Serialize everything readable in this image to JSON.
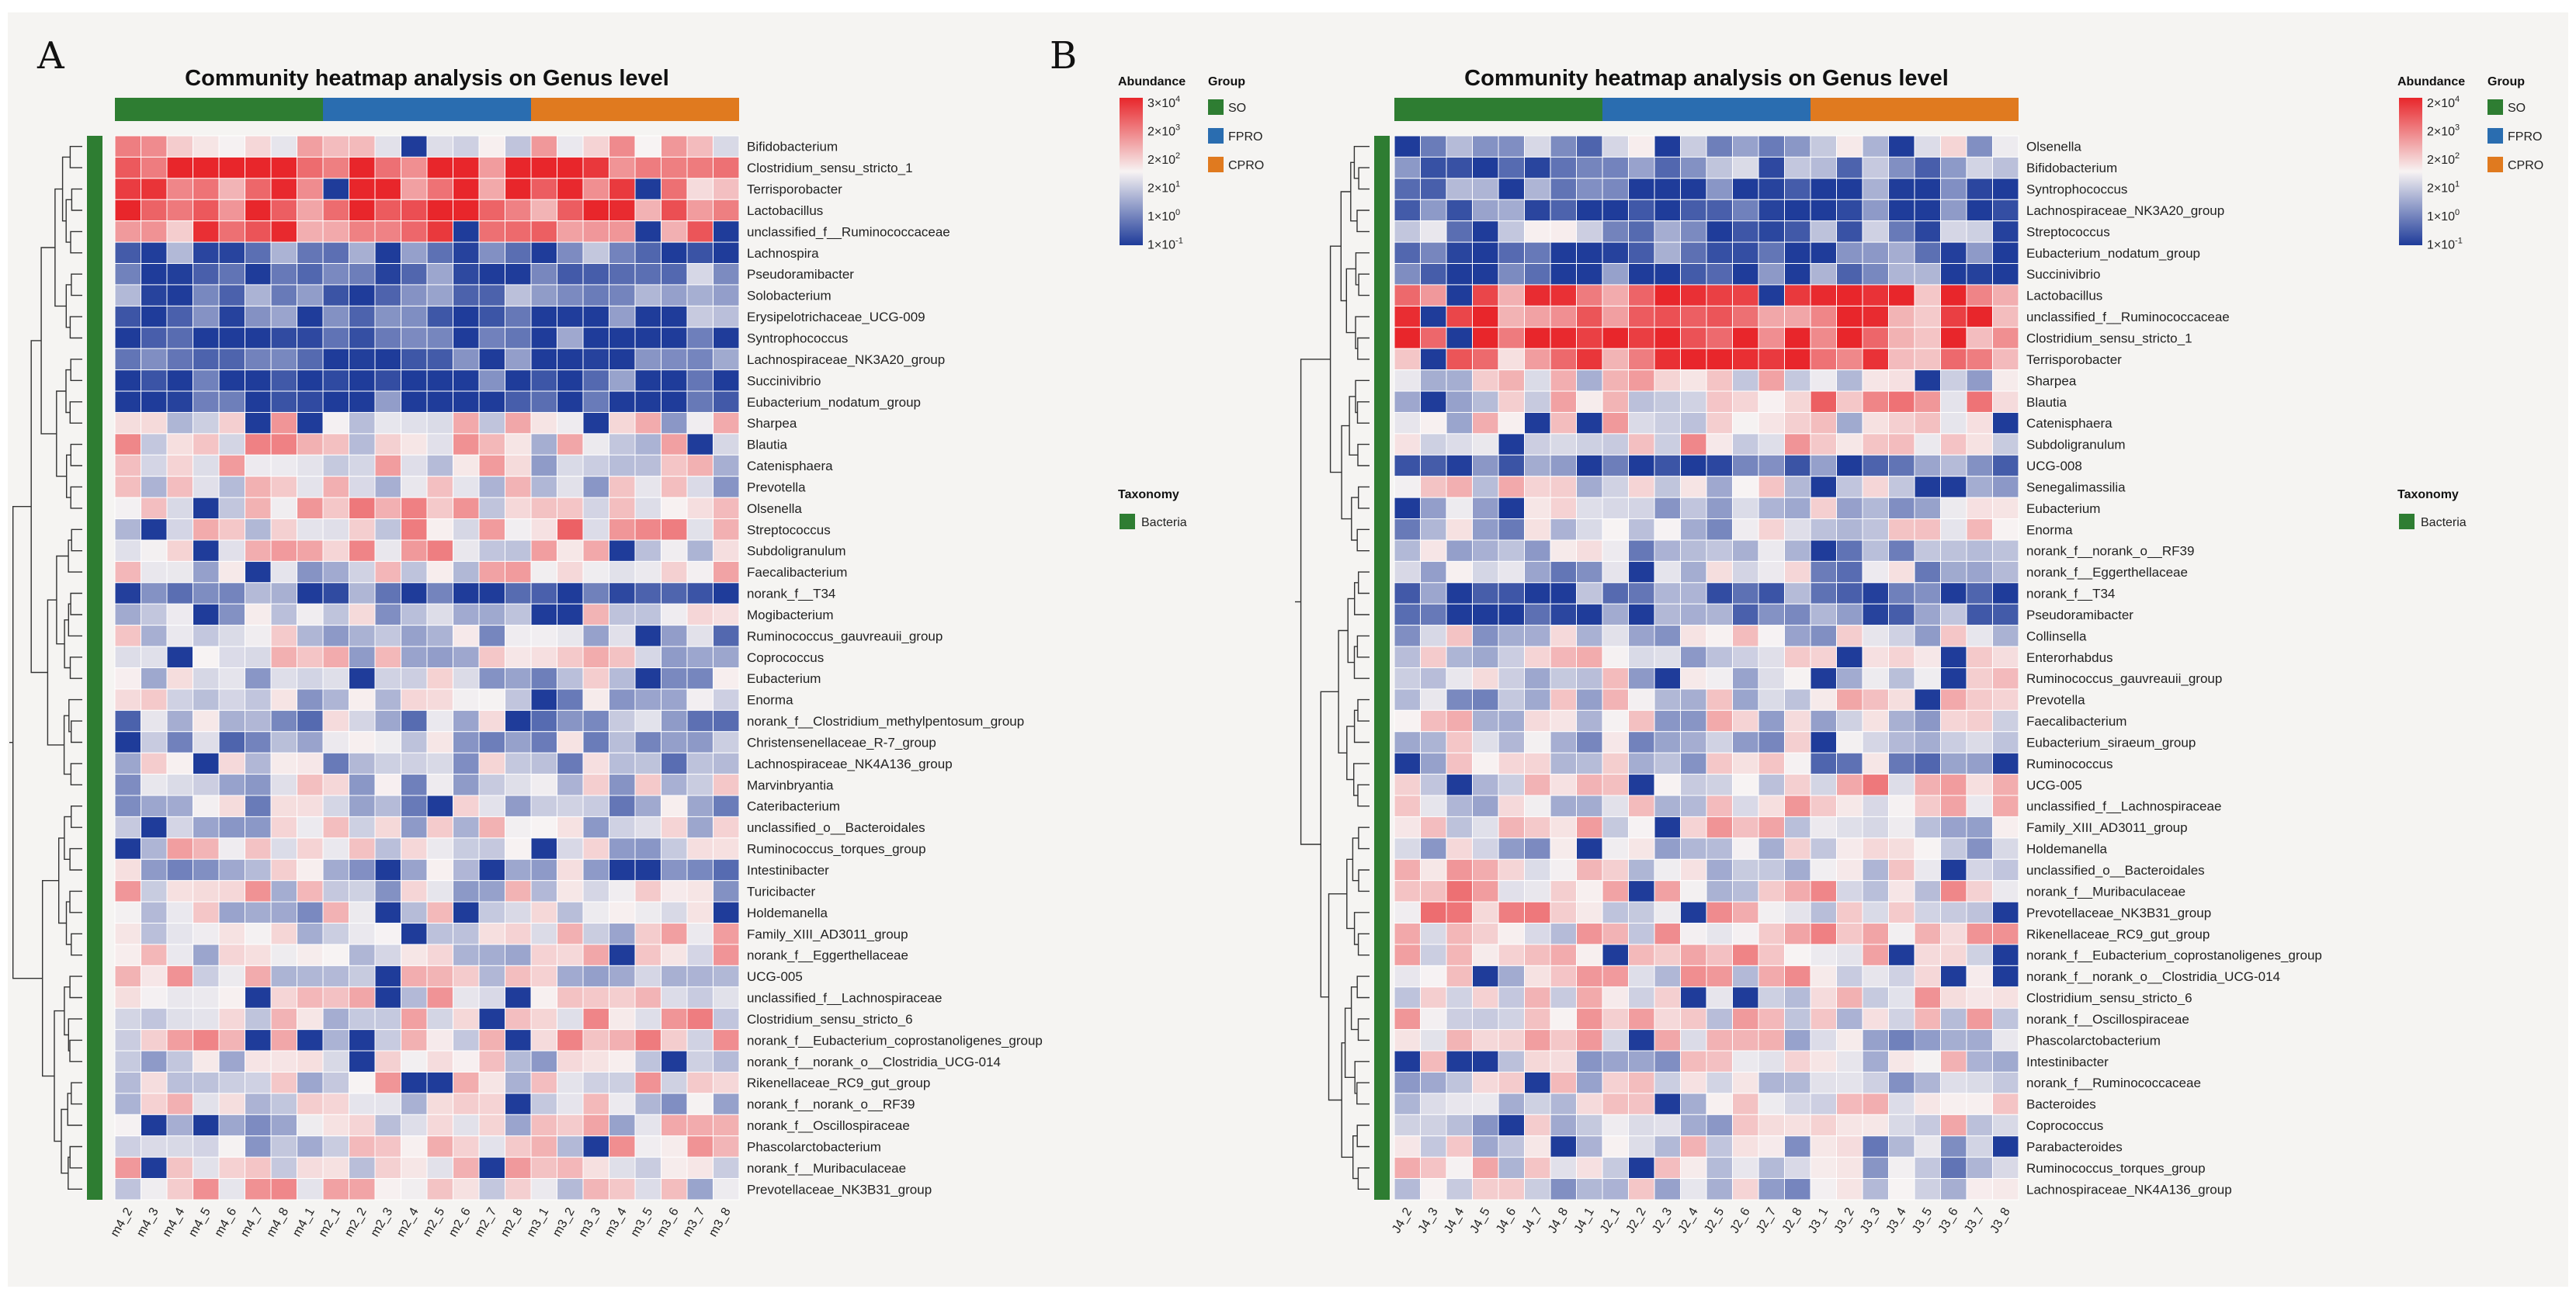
{
  "colors": {
    "SO": "#2e7d32",
    "FPRO": "#2a6db0",
    "CPRO": "#e07a1f",
    "Bacteria": "#2e7d32",
    "low": "#1f3c9a",
    "mid": "#f7f3f3",
    "high": "#e8262b",
    "tree": "#333333"
  },
  "chart_data": [
    {
      "type": "heatmap",
      "panel_label": "A",
      "title": "Community heatmap analysis on Genus level",
      "value_unit": "log10 abundance",
      "groups": [
        {
          "name": "SO",
          "samples": [
            "m4_2",
            "m4_3",
            "m4_4",
            "m4_5",
            "m4_6",
            "m4_7",
            "m4_8",
            "m4_1"
          ]
        },
        {
          "name": "FPRO",
          "samples": [
            "m2_1",
            "m2_2",
            "m2_3",
            "m2_4",
            "m2_5",
            "m2_6",
            "m2_7",
            "m2_8"
          ]
        },
        {
          "name": "CPRO",
          "samples": [
            "m3_1",
            "m3_2",
            "m3_3",
            "m3_4",
            "m3_5",
            "m3_6",
            "m3_7",
            "m3_8"
          ]
        }
      ],
      "columns": [
        "m4_2",
        "m4_3",
        "m4_4",
        "m4_5",
        "m4_6",
        "m4_7",
        "m4_8",
        "m4_1",
        "m2_1",
        "m2_2",
        "m2_3",
        "m2_4",
        "m2_5",
        "m2_6",
        "m2_7",
        "m2_8",
        "m3_1",
        "m3_2",
        "m3_3",
        "m3_4",
        "m3_5",
        "m3_6",
        "m3_7",
        "m3_8"
      ],
      "rows": [
        {
          "name": "Bifidobacterium",
          "level": 1.8
        },
        {
          "name": "Clostridium_sensu_stricto_1",
          "level": 3.6
        },
        {
          "name": "Terrisporobacter",
          "level": 3.3
        },
        {
          "name": "Lactobacillus",
          "level": 3.5
        },
        {
          "name": "unclassified_f__Ruminococcaceae",
          "level": 3.2
        },
        {
          "name": "Lachnospira",
          "level": -0.3
        },
        {
          "name": "Pseudoramibacter",
          "level": -0.2
        },
        {
          "name": "Solobacterium",
          "level": -0.1
        },
        {
          "name": "Erysipelotrichaceae_UCG-009",
          "level": -0.4
        },
        {
          "name": "Syntrophococcus",
          "level": -0.7
        },
        {
          "name": "Lachnospiraceae_NK3A20_group",
          "level": -0.7
        },
        {
          "name": "Succinivibrio",
          "level": -0.6
        },
        {
          "name": "Eubacterium_nodatum_group",
          "level": -0.5
        },
        {
          "name": "Sharpea",
          "level": 1.6
        },
        {
          "name": "Blautia",
          "level": 1.7
        },
        {
          "name": "Catenisphaera",
          "level": 1.5
        },
        {
          "name": "Prevotella",
          "level": 1.5
        },
        {
          "name": "Olsenella",
          "level": 1.9
        },
        {
          "name": "Streptococcus",
          "level": 1.9
        },
        {
          "name": "Subdoligranulum",
          "level": 1.9
        },
        {
          "name": "Faecalibacterium",
          "level": 1.6
        },
        {
          "name": "norank_f__T34",
          "level": -0.3
        },
        {
          "name": "Mogibacterium",
          "level": 1.2
        },
        {
          "name": "Ruminococcus_gauvreauii_group",
          "level": 1.1
        },
        {
          "name": "Coprococcus",
          "level": 1.3
        },
        {
          "name": "Eubacterium",
          "level": 1.0
        },
        {
          "name": "Enorma",
          "level": 0.8
        },
        {
          "name": "norank_f__Clostridium_methylpentosum_group",
          "level": 0.7
        },
        {
          "name": "Christensenellaceae_R-7_group",
          "level": 0.6
        },
        {
          "name": "Lachnospiraceae_NK4A136_group",
          "level": 0.9
        },
        {
          "name": "Marvinbryantia",
          "level": 0.8
        },
        {
          "name": "Cateribacterium",
          "level": 0.9
        },
        {
          "name": "unclassified_o__Bacteroidales",
          "level": 1.2
        },
        {
          "name": "Ruminococcus_torques_group",
          "level": 1.2
        },
        {
          "name": "Intestinibacter",
          "level": 1.1
        },
        {
          "name": "Turicibacter",
          "level": 1.2
        },
        {
          "name": "Holdemanella",
          "level": 1.4
        },
        {
          "name": "Family_XIII_AD3011_group",
          "level": 1.5
        },
        {
          "name": "norank_f__Eggerthellaceae",
          "level": 1.3
        },
        {
          "name": "UCG-005",
          "level": 1.5
        },
        {
          "name": "unclassified_f__Lachnospiraceae",
          "level": 1.6
        },
        {
          "name": "Clostridium_sensu_stricto_6",
          "level": 1.6
        },
        {
          "name": "norank_f__Eubacterium_coprostanoligenes_group",
          "level": 1.7
        },
        {
          "name": "norank_f__norank_o__Clostridia_UCG-014",
          "level": 1.5
        },
        {
          "name": "Rikenellaceae_RC9_gut_group",
          "level": 1.6
        },
        {
          "name": "norank_f__norank_o__RF39",
          "level": 1.4
        },
        {
          "name": "norank_f__Oscillospiraceae",
          "level": 1.5
        },
        {
          "name": "Phascolarctobacterium",
          "level": 1.4
        },
        {
          "name": "norank_f__Muribaculaceae",
          "level": 1.5
        },
        {
          "name": "Prevotellaceae_NK3B31_group",
          "level": 1.6
        }
      ],
      "legend": {
        "abundance_title": "Abundance",
        "abundance_ticks": [
          "3×10^4",
          "2×10^3",
          "2×10^2",
          "2×10^1",
          "1×10^0",
          "1×10^-1"
        ],
        "group_title": "Group",
        "groups": [
          "SO",
          "FPRO",
          "CPRO"
        ],
        "taxonomy_title": "Taxonomy",
        "taxonomy": "Bacteria"
      }
    },
    {
      "type": "heatmap",
      "panel_label": "B",
      "title": "Community heatmap analysis on Genus level",
      "value_unit": "log10 abundance",
      "groups": [
        {
          "name": "SO",
          "samples": [
            "J4_2",
            "J4_3",
            "J4_4",
            "J4_5",
            "J4_6",
            "J4_7",
            "J4_8",
            "J4_1"
          ]
        },
        {
          "name": "FPRO",
          "samples": [
            "J2_1",
            "J2_2",
            "J2_3",
            "J2_4",
            "J2_5",
            "J2_6",
            "J2_7",
            "J2_8"
          ]
        },
        {
          "name": "CPRO",
          "samples": [
            "J3_1",
            "J3_2",
            "J3_3",
            "J3_4",
            "J3_5",
            "J3_6",
            "J3_7",
            "J3_8"
          ]
        }
      ],
      "columns": [
        "J4_2",
        "J4_3",
        "J4_4",
        "J4_5",
        "J4_6",
        "J4_7",
        "J4_8",
        "J4_1",
        "J2_1",
        "J2_2",
        "J2_3",
        "J2_4",
        "J2_5",
        "J2_6",
        "J2_7",
        "J2_8",
        "J3_1",
        "J3_2",
        "J3_3",
        "J3_4",
        "J3_5",
        "J3_6",
        "J3_7",
        "J3_8"
      ],
      "rows": [
        {
          "name": "Olsenella",
          "level": 0.9
        },
        {
          "name": "Bifidobacterium",
          "level": 0.2
        },
        {
          "name": "Syntrophococcus",
          "level": -0.5
        },
        {
          "name": "Lachnospiraceae_NK3A20_group",
          "level": -0.4
        },
        {
          "name": "Streptococcus",
          "level": 0.2
        },
        {
          "name": "Eubacterium_nodatum_group",
          "level": -0.4
        },
        {
          "name": "Succinivibrio",
          "level": -0.6
        },
        {
          "name": "Lactobacillus",
          "level": 3.3
        },
        {
          "name": "unclassified_f__Ruminococcaceae",
          "level": 3.1
        },
        {
          "name": "Clostridium_sensu_stricto_1",
          "level": 3.5
        },
        {
          "name": "Terrisporobacter",
          "level": 3.2
        },
        {
          "name": "Sharpea",
          "level": 1.6
        },
        {
          "name": "Blautia",
          "level": 1.8
        },
        {
          "name": "Catenisphaera",
          "level": 1.6
        },
        {
          "name": "Subdoligranulum",
          "level": 1.8
        },
        {
          "name": "UCG-008",
          "level": -0.3
        },
        {
          "name": "Senegalimassilia",
          "level": 1.4
        },
        {
          "name": "Eubacterium",
          "level": 1.0
        },
        {
          "name": "Enorma",
          "level": 0.9
        },
        {
          "name": "norank_f__norank_o__RF39",
          "level": 0.8
        },
        {
          "name": "norank_f__Eggerthellaceae",
          "level": 0.9
        },
        {
          "name": "norank_f__T34",
          "level": -0.3
        },
        {
          "name": "Pseudoramibacter",
          "level": -0.1
        },
        {
          "name": "Collinsella",
          "level": 1.2
        },
        {
          "name": "Enterorhabdus",
          "level": 1.2
        },
        {
          "name": "Ruminococcus_gauvreauii_group",
          "level": 1.1
        },
        {
          "name": "Prevotella",
          "level": 1.3
        },
        {
          "name": "Faecalibacterium",
          "level": 1.3
        },
        {
          "name": "Eubacterium_siraeum_group",
          "level": 0.9
        },
        {
          "name": "Ruminococcus",
          "level": 1.0
        },
        {
          "name": "UCG-005",
          "level": 1.5
        },
        {
          "name": "unclassified_f__Lachnospiraceae",
          "level": 1.7
        },
        {
          "name": "Family_XIII_AD3011_group",
          "level": 1.6
        },
        {
          "name": "Holdemanella",
          "level": 1.4
        },
        {
          "name": "unclassified_o__Bacteroidales",
          "level": 1.5
        },
        {
          "name": "norank_f__Muribaculaceae",
          "level": 1.6
        },
        {
          "name": "Prevotellaceae_NK3B31_group",
          "level": 1.7
        },
        {
          "name": "Rikenellaceae_RC9_gut_group",
          "level": 1.7
        },
        {
          "name": "norank_f__Eubacterium_coprostanoligenes_group",
          "level": 1.8
        },
        {
          "name": "norank_f__norank_o__Clostridia_UCG-014",
          "level": 1.7
        },
        {
          "name": "Clostridium_sensu_stricto_6",
          "level": 1.8
        },
        {
          "name": "norank_f__Oscillospiraceae",
          "level": 1.5
        },
        {
          "name": "Phascolarctobacterium",
          "level": 1.4
        },
        {
          "name": "Intestinibacter",
          "level": 1.2
        },
        {
          "name": "norank_f__Ruminococcaceae",
          "level": 1.3
        },
        {
          "name": "Bacteroides",
          "level": 1.2
        },
        {
          "name": "Coprococcus",
          "level": 1.2
        },
        {
          "name": "Parabacteroides",
          "level": 1.2
        },
        {
          "name": "Ruminococcus_torques_group",
          "level": 1.1
        },
        {
          "name": "Lachnospiraceae_NK4A136_group",
          "level": 1.1
        }
      ],
      "legend": {
        "abundance_title": "Abundance",
        "abundance_ticks": [
          "2×10^4",
          "2×10^3",
          "2×10^2",
          "2×10^1",
          "1×10^0",
          "1×10^-1"
        ],
        "group_title": "Group",
        "groups": [
          "SO",
          "FPRO",
          "CPRO"
        ],
        "taxonomy_title": "Taxonomy",
        "taxonomy": "Bacteria"
      }
    }
  ]
}
